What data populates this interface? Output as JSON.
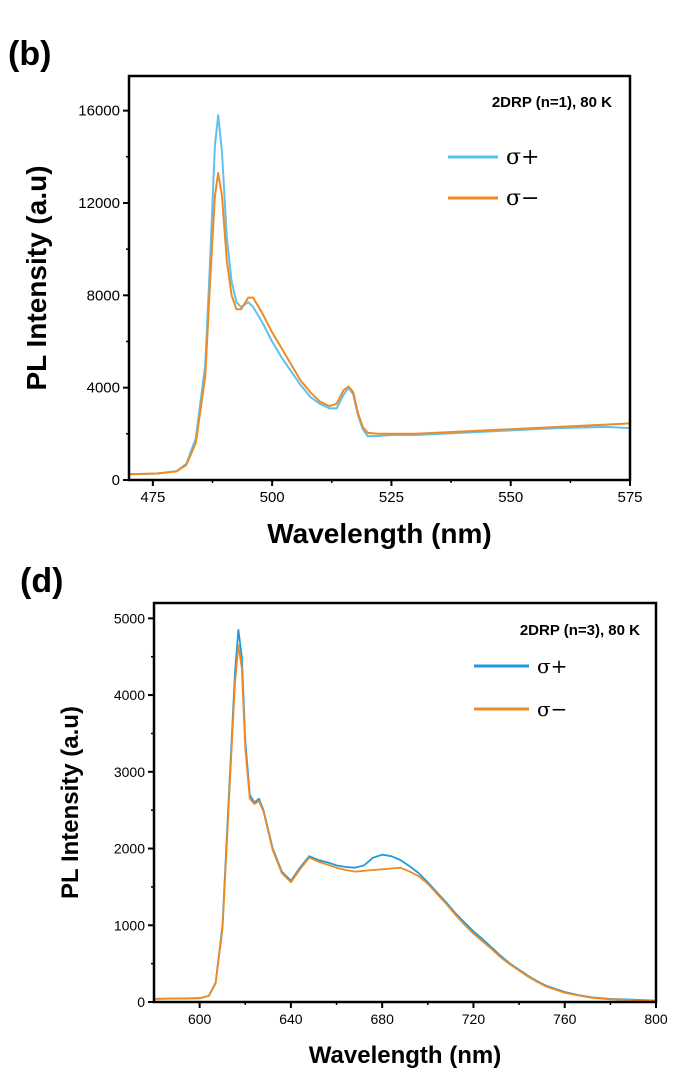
{
  "chart_data": [
    {
      "panel": "(b)",
      "type": "line",
      "annotation": "2DRP (n=1), 80 K",
      "xlabel": "Wavelength (nm)",
      "ylabel": "PL Intensity (a.u)",
      "xlim": [
        470,
        575
      ],
      "ylim": [
        0,
        17500
      ],
      "xticks": [
        475,
        500,
        525,
        550,
        575
      ],
      "yticks": [
        0,
        4000,
        8000,
        12000,
        16000
      ],
      "legend_position": "top-right",
      "series": [
        {
          "name": "σ+",
          "color": "#5ec2f0",
          "points": [
            [
              470,
              250
            ],
            [
              476,
              280
            ],
            [
              480,
              380
            ],
            [
              482,
              700
            ],
            [
              484,
              1800
            ],
            [
              486,
              5000
            ],
            [
              487,
              9500
            ],
            [
              488,
              14500
            ],
            [
              488.7,
              15800
            ],
            [
              489.5,
              14200
            ],
            [
              490.5,
              10500
            ],
            [
              491.5,
              8600
            ],
            [
              492.5,
              7700
            ],
            [
              493.5,
              7500
            ],
            [
              495,
              7700
            ],
            [
              496,
              7500
            ],
            [
              498,
              6800
            ],
            [
              500,
              6000
            ],
            [
              502,
              5300
            ],
            [
              504,
              4700
            ],
            [
              506,
              4100
            ],
            [
              508,
              3600
            ],
            [
              510,
              3300
            ],
            [
              512,
              3100
            ],
            [
              513.5,
              3100
            ],
            [
              515,
              3700
            ],
            [
              516,
              4000
            ],
            [
              517,
              3700
            ],
            [
              518,
              2800
            ],
            [
              519,
              2200
            ],
            [
              520,
              1900
            ],
            [
              522,
              1900
            ],
            [
              525,
              1950
            ],
            [
              530,
              1950
            ],
            [
              540,
              2050
            ],
            [
              550,
              2150
            ],
            [
              560,
              2250
            ],
            [
              570,
              2300
            ],
            [
              575,
              2250
            ]
          ]
        },
        {
          "name": "σ−",
          "color": "#f08a24",
          "points": [
            [
              470,
              250
            ],
            [
              476,
              280
            ],
            [
              480,
              380
            ],
            [
              482,
              650
            ],
            [
              484,
              1600
            ],
            [
              486,
              4500
            ],
            [
              487,
              8600
            ],
            [
              488,
              12300
            ],
            [
              488.7,
              13300
            ],
            [
              489.5,
              12300
            ],
            [
              490.5,
              9500
            ],
            [
              491.5,
              8000
            ],
            [
              492.5,
              7400
            ],
            [
              493.5,
              7400
            ],
            [
              495,
              7900
            ],
            [
              496,
              7900
            ],
            [
              498,
              7200
            ],
            [
              500,
              6400
            ],
            [
              502,
              5700
            ],
            [
              504,
              5000
            ],
            [
              506,
              4300
            ],
            [
              508,
              3800
            ],
            [
              510,
              3400
            ],
            [
              512,
              3200
            ],
            [
              513.5,
              3300
            ],
            [
              515,
              3900
            ],
            [
              516,
              4050
            ],
            [
              517,
              3800
            ],
            [
              518,
              2900
            ],
            [
              519,
              2300
            ],
            [
              520,
              2050
            ],
            [
              522,
              2000
            ],
            [
              525,
              2000
            ],
            [
              530,
              2000
            ],
            [
              540,
              2100
            ],
            [
              550,
              2200
            ],
            [
              560,
              2300
            ],
            [
              570,
              2400
            ],
            [
              575,
              2450
            ]
          ]
        }
      ]
    },
    {
      "panel": "(d)",
      "type": "line",
      "annotation": "2DRP (n=3), 80 K",
      "xlabel": "Wavelength (nm)",
      "ylabel": "PL Intensity (a.u)",
      "xlim": [
        580,
        800
      ],
      "ylim": [
        0,
        5200
      ],
      "xticks": [
        600,
        640,
        680,
        720,
        760,
        800
      ],
      "yticks": [
        0,
        1000,
        2000,
        3000,
        4000,
        5000
      ],
      "legend_position": "top-right",
      "series": [
        {
          "name": "σ+",
          "color": "#1e9be0",
          "points": [
            [
              580,
              40
            ],
            [
              600,
              50
            ],
            [
              604,
              80
            ],
            [
              607,
              250
            ],
            [
              610,
              1000
            ],
            [
              612,
              2200
            ],
            [
              614,
              3400
            ],
            [
              615.5,
              4300
            ],
            [
              617,
              4850
            ],
            [
              618.5,
              4500
            ],
            [
              620,
              3400
            ],
            [
              622,
              2700
            ],
            [
              624,
              2600
            ],
            [
              626,
              2650
            ],
            [
              628,
              2500
            ],
            [
              632,
              2000
            ],
            [
              636,
              1700
            ],
            [
              640,
              1580
            ],
            [
              644,
              1750
            ],
            [
              648,
              1900
            ],
            [
              652,
              1850
            ],
            [
              656,
              1820
            ],
            [
              660,
              1780
            ],
            [
              664,
              1760
            ],
            [
              668,
              1750
            ],
            [
              672,
              1780
            ],
            [
              676,
              1880
            ],
            [
              680,
              1920
            ],
            [
              684,
              1900
            ],
            [
              688,
              1850
            ],
            [
              692,
              1770
            ],
            [
              696,
              1680
            ],
            [
              700,
              1560
            ],
            [
              704,
              1430
            ],
            [
              708,
              1300
            ],
            [
              712,
              1160
            ],
            [
              716,
              1040
            ],
            [
              720,
              920
            ],
            [
              724,
              820
            ],
            [
              728,
              710
            ],
            [
              732,
              600
            ],
            [
              736,
              500
            ],
            [
              740,
              420
            ],
            [
              744,
              340
            ],
            [
              748,
              270
            ],
            [
              752,
              210
            ],
            [
              756,
              170
            ],
            [
              760,
              130
            ],
            [
              766,
              90
            ],
            [
              772,
              60
            ],
            [
              780,
              40
            ],
            [
              790,
              30
            ],
            [
              800,
              20
            ]
          ]
        },
        {
          "name": "σ−",
          "color": "#f08a24",
          "points": [
            [
              580,
              40
            ],
            [
              600,
              50
            ],
            [
              604,
              80
            ],
            [
              607,
              240
            ],
            [
              610,
              950
            ],
            [
              612,
              2100
            ],
            [
              614,
              3300
            ],
            [
              615.5,
              4150
            ],
            [
              617,
              4650
            ],
            [
              618.5,
              4350
            ],
            [
              620,
              3300
            ],
            [
              622,
              2650
            ],
            [
              624,
              2580
            ],
            [
              626,
              2620
            ],
            [
              628,
              2480
            ],
            [
              632,
              1980
            ],
            [
              636,
              1680
            ],
            [
              640,
              1560
            ],
            [
              644,
              1730
            ],
            [
              648,
              1880
            ],
            [
              652,
              1830
            ],
            [
              656,
              1790
            ],
            [
              660,
              1750
            ],
            [
              664,
              1720
            ],
            [
              668,
              1700
            ],
            [
              672,
              1710
            ],
            [
              676,
              1720
            ],
            [
              680,
              1730
            ],
            [
              684,
              1740
            ],
            [
              688,
              1750
            ],
            [
              692,
              1700
            ],
            [
              696,
              1640
            ],
            [
              700,
              1540
            ],
            [
              704,
              1410
            ],
            [
              708,
              1280
            ],
            [
              712,
              1140
            ],
            [
              716,
              1010
            ],
            [
              720,
              890
            ],
            [
              724,
              790
            ],
            [
              728,
              690
            ],
            [
              732,
              580
            ],
            [
              736,
              490
            ],
            [
              740,
              410
            ],
            [
              744,
              330
            ],
            [
              748,
              260
            ],
            [
              752,
              200
            ],
            [
              756,
              160
            ],
            [
              760,
              120
            ],
            [
              766,
              85
            ],
            [
              772,
              55
            ],
            [
              780,
              35
            ],
            [
              790,
              25
            ],
            [
              800,
              20
            ]
          ]
        }
      ]
    }
  ]
}
